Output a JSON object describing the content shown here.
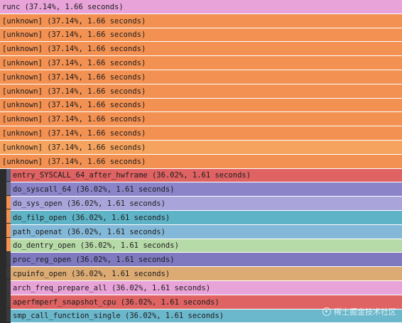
{
  "flamegraph": {
    "frames": [
      {
        "label": "runc (37.14%, 1.66 seconds)",
        "color": "#e8a3d8"
      },
      {
        "label": "[unknown] (37.14%, 1.66 seconds)",
        "color": "#f39152"
      },
      {
        "label": "[unknown] (37.14%, 1.66 seconds)",
        "color": "#f39152"
      },
      {
        "label": "[unknown] (37.14%, 1.66 seconds)",
        "color": "#f39152"
      },
      {
        "label": "[unknown] (37.14%, 1.66 seconds)",
        "color": "#f39152"
      },
      {
        "label": "[unknown] (37.14%, 1.66 seconds)",
        "color": "#f39152"
      },
      {
        "label": "[unknown] (37.14%, 1.66 seconds)",
        "color": "#f39152"
      },
      {
        "label": "[unknown] (37.14%, 1.66 seconds)",
        "color": "#f39152"
      },
      {
        "label": "[unknown] (37.14%, 1.66 seconds)",
        "color": "#f39152"
      },
      {
        "label": "[unknown] (37.14%, 1.66 seconds)",
        "color": "#f39152"
      },
      {
        "label": "[unknown] (37.14%, 1.66 seconds)",
        "color": "#f5a35e"
      },
      {
        "label": "[unknown] (37.14%, 1.66 seconds)",
        "color": "#f39152"
      },
      {
        "label": "entry_SYSCALL_64_after_hwframe (36.02%, 1.61 seconds)",
        "color": "#e06363"
      },
      {
        "label": "do_syscall_64 (36.02%, 1.61 seconds)",
        "color": "#8c84c9"
      },
      {
        "label": "do_sys_open (36.02%, 1.61 seconds)",
        "color": "#a9a4da"
      },
      {
        "label": "do_filp_open (36.02%, 1.61 seconds)",
        "color": "#5fb3c7"
      },
      {
        "label": "path_openat (36.02%, 1.61 seconds)",
        "color": "#84b8d8"
      },
      {
        "label": "do_dentry_open (36.02%, 1.61 seconds)",
        "color": "#b7dba8"
      },
      {
        "label": "proc_reg_open (36.02%, 1.61 seconds)",
        "color": "#7f79c0"
      },
      {
        "label": "cpuinfo_open (36.02%, 1.61 seconds)",
        "color": "#dcab73"
      },
      {
        "label": "arch_freq_prepare_all (36.02%, 1.61 seconds)",
        "color": "#e8a3d8"
      },
      {
        "label": "aperfmperf_snapshot_cpu (36.02%, 1.61 seconds)",
        "color": "#e06363"
      },
      {
        "label": "smp_call_function_single (36.02%, 1.61 seconds)",
        "color": "#6bb7cc"
      }
    ],
    "gutter_colors": [
      "#5b5b7b",
      "#6a6a8a",
      "#f39152",
      "#f39152",
      "#f39152",
      "#f39152",
      "#3a3a3a",
      "#3a3a3a",
      "#3a3a3a",
      "#3a3a3a",
      "#3a3a3a"
    ]
  },
  "watermark": {
    "text": "稀土掘金技术社区"
  }
}
